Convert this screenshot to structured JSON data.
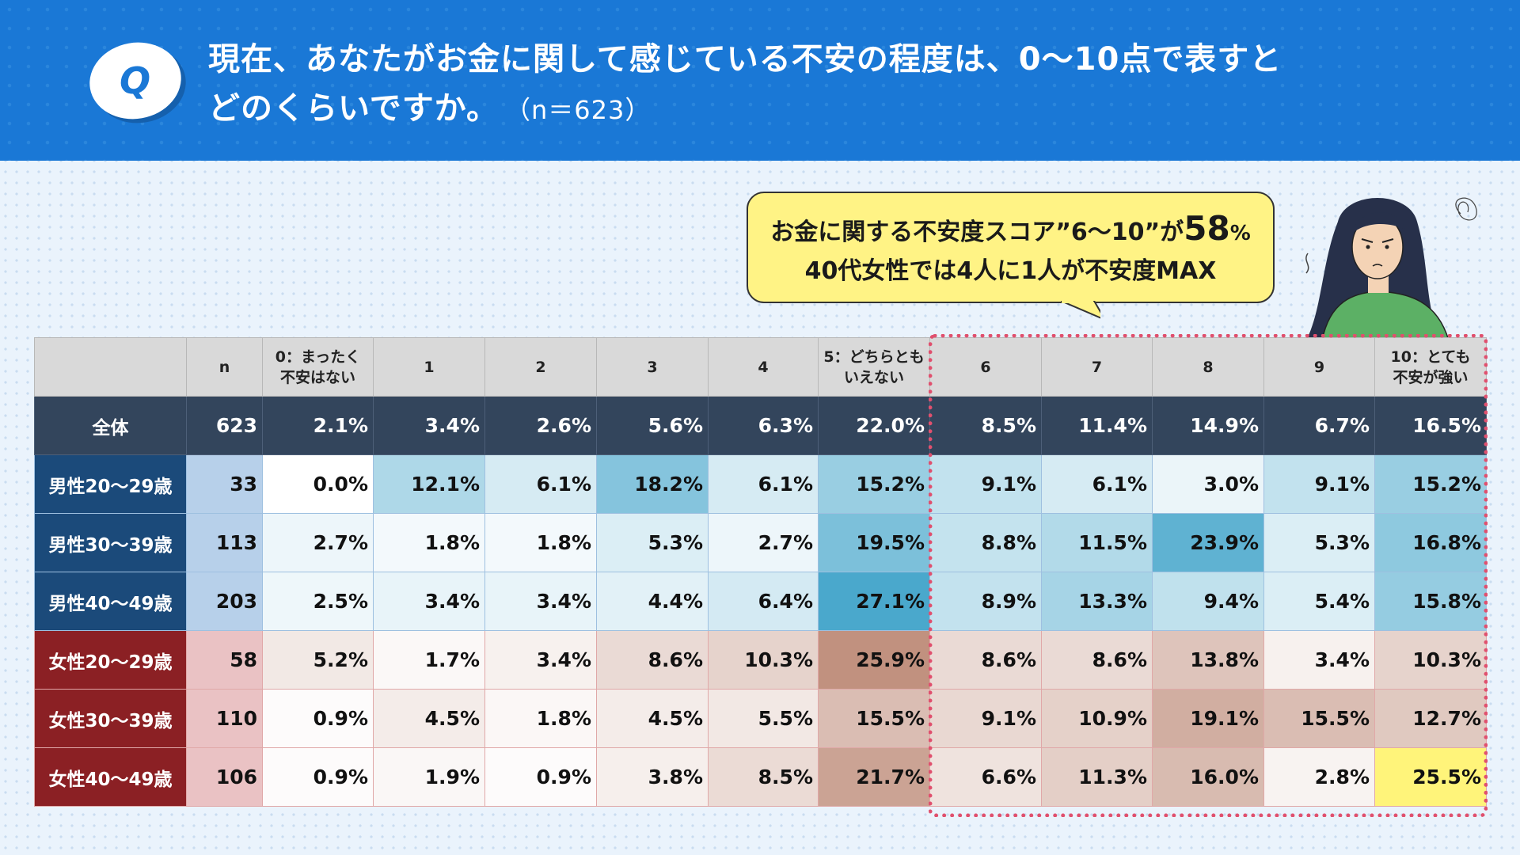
{
  "header": {
    "badge": "Q",
    "title_line1": "現在、あなたがお金に関して感じている不安の程度は、0〜10点で表すと",
    "title_line2": "どのくらいですか。",
    "sample": "（n＝623）"
  },
  "callout": {
    "line1_pre": "お金に関する不安度スコア”6〜10”が",
    "line1_big": "58",
    "line1_pct": "%",
    "line2": "40代女性では4人に1人が不安度MAX"
  },
  "colors": {
    "header_blue": "#1a78d6",
    "male_label": "#1b4a7a",
    "female_label": "#8b2024",
    "total_row": "#33455c",
    "highlight": "#fff47a",
    "dashed_box": "#e0506e"
  },
  "chart_data": {
    "type": "table",
    "columns": [
      "",
      "n",
      "0：まったく\n不安はない",
      "1",
      "2",
      "3",
      "4",
      "5：どちらとも\nいえない",
      "6",
      "7",
      "8",
      "9",
      "10：とても\n不安が強い"
    ],
    "rows": [
      {
        "label": "全体",
        "group": "total",
        "n": "623",
        "values": [
          "2.1%",
          "3.4%",
          "2.6%",
          "5.6%",
          "6.3%",
          "22.0%",
          "8.5%",
          "11.4%",
          "14.9%",
          "6.7%",
          "16.5%"
        ]
      },
      {
        "label": "男性20〜29歳",
        "group": "male",
        "n": "33",
        "values": [
          "0.0%",
          "12.1%",
          "6.1%",
          "18.2%",
          "6.1%",
          "15.2%",
          "9.1%",
          "6.1%",
          "3.0%",
          "9.1%",
          "15.2%"
        ]
      },
      {
        "label": "男性30〜39歳",
        "group": "male",
        "n": "113",
        "values": [
          "2.7%",
          "1.8%",
          "1.8%",
          "5.3%",
          "2.7%",
          "19.5%",
          "8.8%",
          "11.5%",
          "23.9%",
          "5.3%",
          "16.8%"
        ]
      },
      {
        "label": "男性40〜49歳",
        "group": "male",
        "n": "203",
        "values": [
          "2.5%",
          "3.4%",
          "3.4%",
          "4.4%",
          "6.4%",
          "27.1%",
          "8.9%",
          "13.3%",
          "9.4%",
          "5.4%",
          "15.8%"
        ]
      },
      {
        "label": "女性20〜29歳",
        "group": "female",
        "n": "58",
        "values": [
          "5.2%",
          "1.7%",
          "3.4%",
          "8.6%",
          "10.3%",
          "25.9%",
          "8.6%",
          "8.6%",
          "13.8%",
          "3.4%",
          "10.3%"
        ]
      },
      {
        "label": "女性30〜39歳",
        "group": "female",
        "n": "110",
        "values": [
          "0.9%",
          "4.5%",
          "1.8%",
          "4.5%",
          "5.5%",
          "15.5%",
          "9.1%",
          "10.9%",
          "19.1%",
          "15.5%",
          "12.7%"
        ]
      },
      {
        "label": "女性40〜49歳",
        "group": "female",
        "n": "106",
        "values": [
          "0.9%",
          "1.9%",
          "0.9%",
          "3.8%",
          "8.5%",
          "21.7%",
          "6.6%",
          "11.3%",
          "16.0%",
          "2.8%",
          "25.5%"
        ]
      }
    ],
    "highlighted_cell": {
      "row": "女性40〜49歳",
      "column": "10：とても\n不安が強い"
    },
    "highlighted_columns": [
      "6",
      "7",
      "8",
      "9",
      "10：とても\n不安が強い"
    ]
  }
}
